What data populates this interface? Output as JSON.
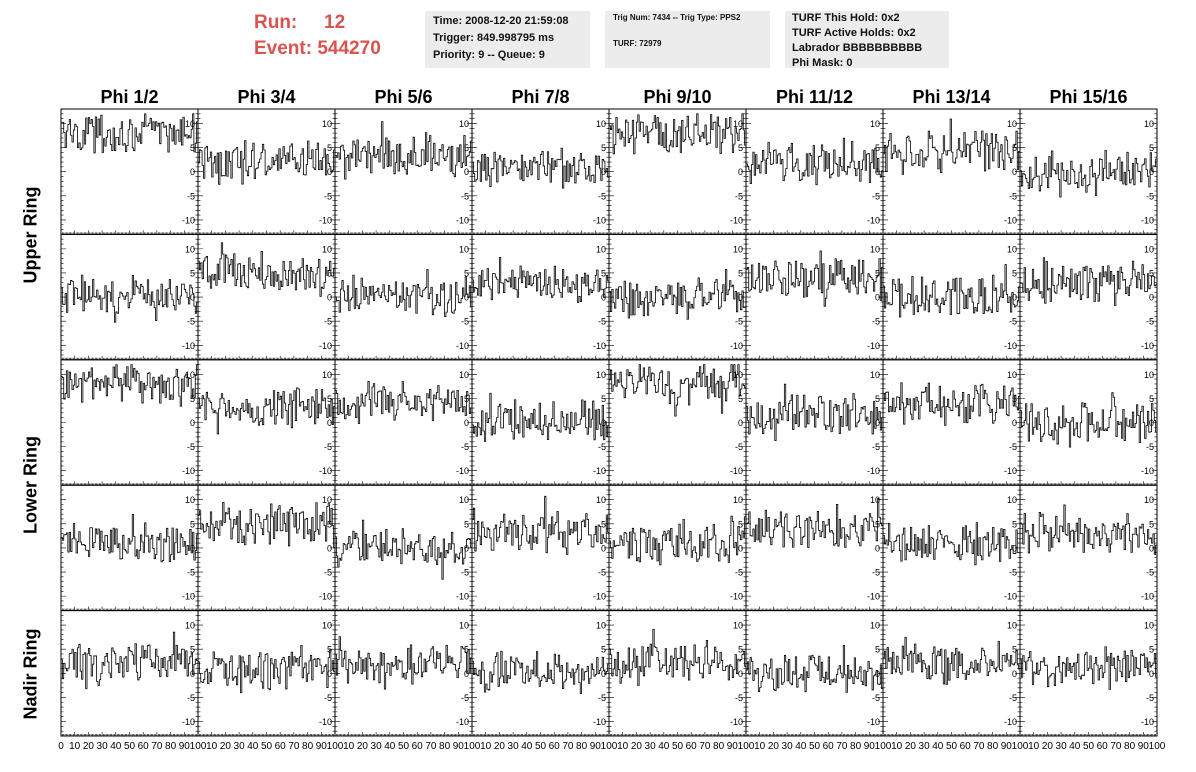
{
  "header": {
    "run_label": "Run:",
    "run_value": "12",
    "event_label": "Event:",
    "event_value": "544270"
  },
  "info_time": {
    "time": "Time: 2008-12-20 21:59:08",
    "trigger": "Trigger: 849.998795 ms",
    "priority": "Priority: 9 -- Queue: 9"
  },
  "info_trig": {
    "line1": "Trig Num: 7434 -- Trig Type: PPS2",
    "line2": "TURF: 72979"
  },
  "info_turf": {
    "hold": "TURF This Hold: 0x2",
    "active": "TURF Active Holds: 0x2",
    "labrador": "Labrador BBBBBBBBBB",
    "phimask": "Phi Mask: 0"
  },
  "phi_titles": [
    "Phi 1/2",
    "Phi 3/4",
    "Phi 5/6",
    "Phi 7/8",
    "Phi 9/10",
    "Phi 11/12",
    "Phi 13/14",
    "Phi 15/16"
  ],
  "ring_labels": [
    "Upper Ring",
    "Lower Ring",
    "Nadir Ring"
  ],
  "chart_data": {
    "type": "line",
    "xlim": [
      0,
      100
    ],
    "ylim": [
      -13,
      13
    ],
    "x_ticks": [
      0,
      10,
      20,
      30,
      40,
      50,
      60,
      70,
      80,
      90,
      100
    ],
    "y_ticks": [
      10,
      5,
      0,
      -5,
      -10
    ],
    "grid": false,
    "n_samples": 100,
    "waveform_baselines": [
      [
        8,
        2,
        3,
        1,
        8,
        2,
        4,
        0
      ],
      [
        0,
        5,
        0,
        3,
        0,
        4,
        0,
        3
      ],
      [
        8,
        3,
        4,
        0,
        8,
        2,
        4,
        0
      ],
      [
        1,
        5,
        0,
        3,
        1,
        4,
        1,
        3
      ],
      [
        2,
        1,
        2,
        0,
        2,
        0,
        2,
        1
      ]
    ]
  }
}
